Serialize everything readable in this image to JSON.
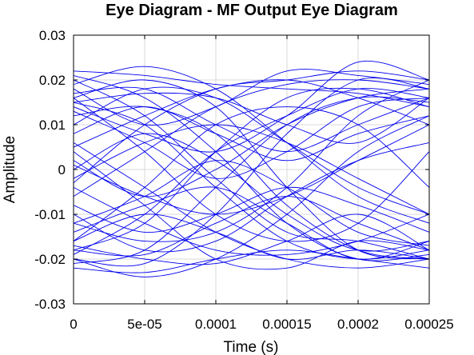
{
  "chart_data": {
    "type": "line",
    "title": "Eye Diagram - MF Output Eye Diagram",
    "xlabel": "Time (s)",
    "ylabel": "Amplitude",
    "xlim": [
      0,
      0.00025
    ],
    "ylim": [
      -0.03,
      0.03
    ],
    "xticks": [
      {
        "value": 0,
        "label": "0"
      },
      {
        "value": 5e-05,
        "label": "5e-05"
      },
      {
        "value": 0.0001,
        "label": "0.0001"
      },
      {
        "value": 0.00015,
        "label": "0.00015"
      },
      {
        "value": 0.0002,
        "label": "0.0002"
      },
      {
        "value": 0.00025,
        "label": "0.00025"
      }
    ],
    "yticks": [
      {
        "value": -0.03,
        "label": "-0.03"
      },
      {
        "value": -0.02,
        "label": "-0.02"
      },
      {
        "value": -0.01,
        "label": "-0.01"
      },
      {
        "value": 0,
        "label": "0"
      },
      {
        "value": 0.01,
        "label": "0.01"
      },
      {
        "value": 0.02,
        "label": "0.02"
      },
      {
        "value": 0.03,
        "label": "0.03"
      }
    ],
    "grid": true,
    "trace_color": "#0000ee",
    "trace_knots_x": [
      0,
      5e-05,
      0.0001,
      0.00015,
      0.0002,
      0.00025
    ],
    "traces": [
      [
        0.016,
        0.02,
        0.014,
        -0.004,
        -0.018,
        -0.02
      ],
      [
        -0.02,
        -0.021,
        -0.01,
        0.008,
        0.02,
        0.018
      ],
      [
        0.015,
        0.01,
        -0.004,
        -0.016,
        -0.02,
        -0.018
      ],
      [
        -0.018,
        -0.012,
        0.004,
        0.016,
        0.018,
        0.014
      ],
      [
        0.022,
        0.021,
        0.019,
        0.018,
        0.017,
        0.014
      ],
      [
        -0.022,
        -0.023,
        -0.02,
        -0.018,
        -0.02,
        -0.022
      ],
      [
        0.005,
        0.012,
        0.018,
        0.02,
        0.016,
        0.01
      ],
      [
        -0.004,
        -0.012,
        -0.018,
        -0.019,
        -0.016,
        -0.01
      ],
      [
        0.006,
        -0.004,
        -0.014,
        -0.02,
        -0.022,
        -0.02
      ],
      [
        -0.006,
        0.004,
        0.014,
        0.019,
        0.02,
        0.018
      ],
      [
        0.017,
        0.018,
        0.01,
        0.004,
        0.01,
        0.016
      ],
      [
        -0.018,
        -0.019,
        -0.012,
        -0.006,
        -0.012,
        -0.018
      ],
      [
        0.014,
        0.008,
        0.004,
        0.012,
        0.024,
        0.02
      ],
      [
        -0.014,
        -0.008,
        -0.004,
        -0.012,
        -0.02,
        -0.016
      ],
      [
        0.021,
        0.016,
        0.004,
        -0.012,
        -0.02,
        -0.019
      ],
      [
        -0.021,
        -0.018,
        -0.004,
        0.01,
        0.016,
        0.015
      ],
      [
        0.01,
        0.018,
        0.016,
        0.006,
        -0.004,
        -0.01
      ],
      [
        -0.01,
        -0.018,
        -0.016,
        -0.006,
        0.002,
        0.006
      ],
      [
        0.016,
        0.004,
        -0.01,
        -0.016,
        -0.012,
        0.004
      ],
      [
        -0.016,
        -0.004,
        0.01,
        0.014,
        0.01,
        -0.004
      ],
      [
        0.001,
        -0.006,
        -0.01,
        -0.006,
        0.002,
        0.01
      ],
      [
        -0.002,
        0.006,
        0.01,
        0.006,
        -0.002,
        -0.01
      ],
      [
        0.019,
        0.023,
        0.018,
        0.006,
        -0.006,
        -0.012
      ],
      [
        -0.02,
        -0.024,
        -0.02,
        -0.01,
        0.004,
        0.012
      ],
      [
        0.004,
        -0.008,
        -0.02,
        -0.022,
        -0.016,
        -0.018
      ],
      [
        -0.003,
        0.01,
        0.018,
        0.02,
        0.022,
        0.02
      ],
      [
        0.012,
        0.014,
        0.008,
        -0.008,
        -0.018,
        -0.02
      ],
      [
        -0.012,
        -0.016,
        -0.014,
        -0.004,
        0.012,
        0.02
      ],
      [
        0.02,
        0.012,
        -0.002,
        -0.014,
        -0.016,
        -0.02
      ],
      [
        -0.019,
        -0.01,
        0.004,
        0.012,
        0.018,
        0.016
      ],
      [
        0.008,
        0.014,
        0.008,
        0.002,
        0.008,
        0.012
      ],
      [
        -0.008,
        -0.014,
        -0.01,
        -0.004,
        -0.008,
        -0.014
      ],
      [
        0.015,
        0.017,
        0.016,
        0.01,
        0.006,
        0.016
      ],
      [
        -0.017,
        -0.02,
        -0.021,
        -0.016,
        -0.01,
        -0.018
      ],
      [
        0.0,
        0.008,
        0.002,
        -0.01,
        -0.018,
        -0.016
      ],
      [
        0.002,
        -0.006,
        0.0,
        0.01,
        0.016,
        0.018
      ],
      [
        0.018,
        0.01,
        0.014,
        0.022,
        0.021,
        0.019
      ],
      [
        -0.016,
        -0.01,
        -0.014,
        -0.02,
        -0.018,
        -0.02
      ],
      [
        0.013,
        0.006,
        -0.002,
        0.004,
        0.014,
        0.016
      ],
      [
        -0.012,
        -0.006,
        0.002,
        -0.004,
        -0.014,
        -0.017
      ]
    ]
  }
}
